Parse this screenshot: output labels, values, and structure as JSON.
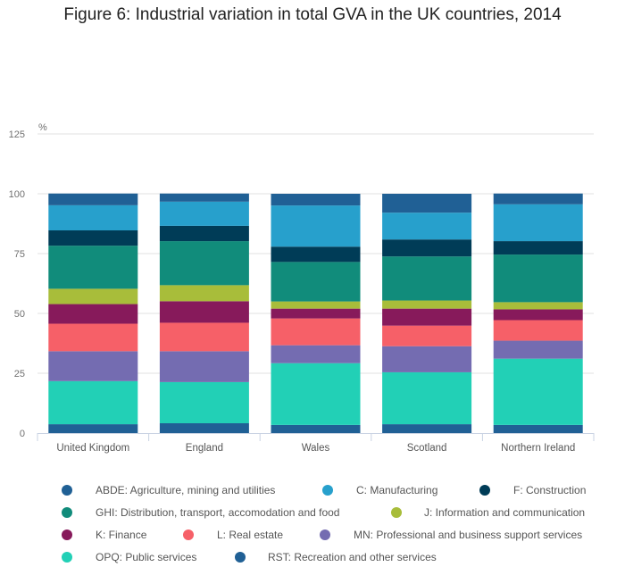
{
  "title": "Figure 6: Industrial variation in total GVA in the UK countries, 2014",
  "chart_data": {
    "type": "bar",
    "stacked": true,
    "title": "Figure 6: Industrial variation in total GVA in the UK countries, 2014",
    "xlabel": "",
    "ylabel": "%",
    "ylim": [
      0,
      125
    ],
    "yticks": [
      "0",
      "25",
      "50",
      "75",
      "100",
      "125"
    ],
    "grid": true,
    "legend_position": "bottom",
    "categories": [
      "United Kingdom",
      "England",
      "Wales",
      "Scotland",
      "Northern Ireland"
    ],
    "series": [
      {
        "name": "ABDE: Agriculture, mining and utilities",
        "color": "#206095",
        "values": [
          3.7,
          4.1,
          3.4,
          3.7,
          3.4
        ]
      },
      {
        "name": "OPQ: Public services",
        "color": "#22d0b6",
        "values": [
          18.0,
          17.2,
          25.8,
          21.7,
          27.7
        ]
      },
      {
        "name": "MN: Professional and business support services",
        "color": "#746cb1",
        "values": [
          12.5,
          12.9,
          7.5,
          10.9,
          7.5
        ]
      },
      {
        "name": "L: Real estate",
        "color": "#f66068",
        "values": [
          11.5,
          11.9,
          11.2,
          8.6,
          8.6
        ]
      },
      {
        "name": "K: Finance",
        "color": "#871a5b",
        "values": [
          8.2,
          9.0,
          4.1,
          7.1,
          4.5
        ]
      },
      {
        "name": "J: Information and communication",
        "color": "#a8bd3a",
        "values": [
          6.4,
          6.7,
          3.0,
          3.4,
          3.0
        ]
      },
      {
        "name": "GHI: Distribution, transport, accomodation and food",
        "color": "#118c7b",
        "values": [
          18.0,
          18.4,
          16.5,
          18.4,
          19.9
        ]
      },
      {
        "name": "F: Construction",
        "color": "#003c57",
        "values": [
          6.4,
          6.4,
          6.4,
          7.1,
          5.6
        ]
      },
      {
        "name": "C: Manufacturing",
        "color": "#27a0cc",
        "values": [
          10.5,
          10.1,
          17.2,
          11.2,
          15.4
        ]
      },
      {
        "name": "RST: Recreation and other services",
        "color": "#206095",
        "values": [
          4.9,
          3.4,
          4.9,
          7.9,
          4.5
        ]
      }
    ],
    "legend_order": [
      0,
      8,
      7,
      6,
      5,
      4,
      3,
      2,
      1,
      9
    ]
  }
}
